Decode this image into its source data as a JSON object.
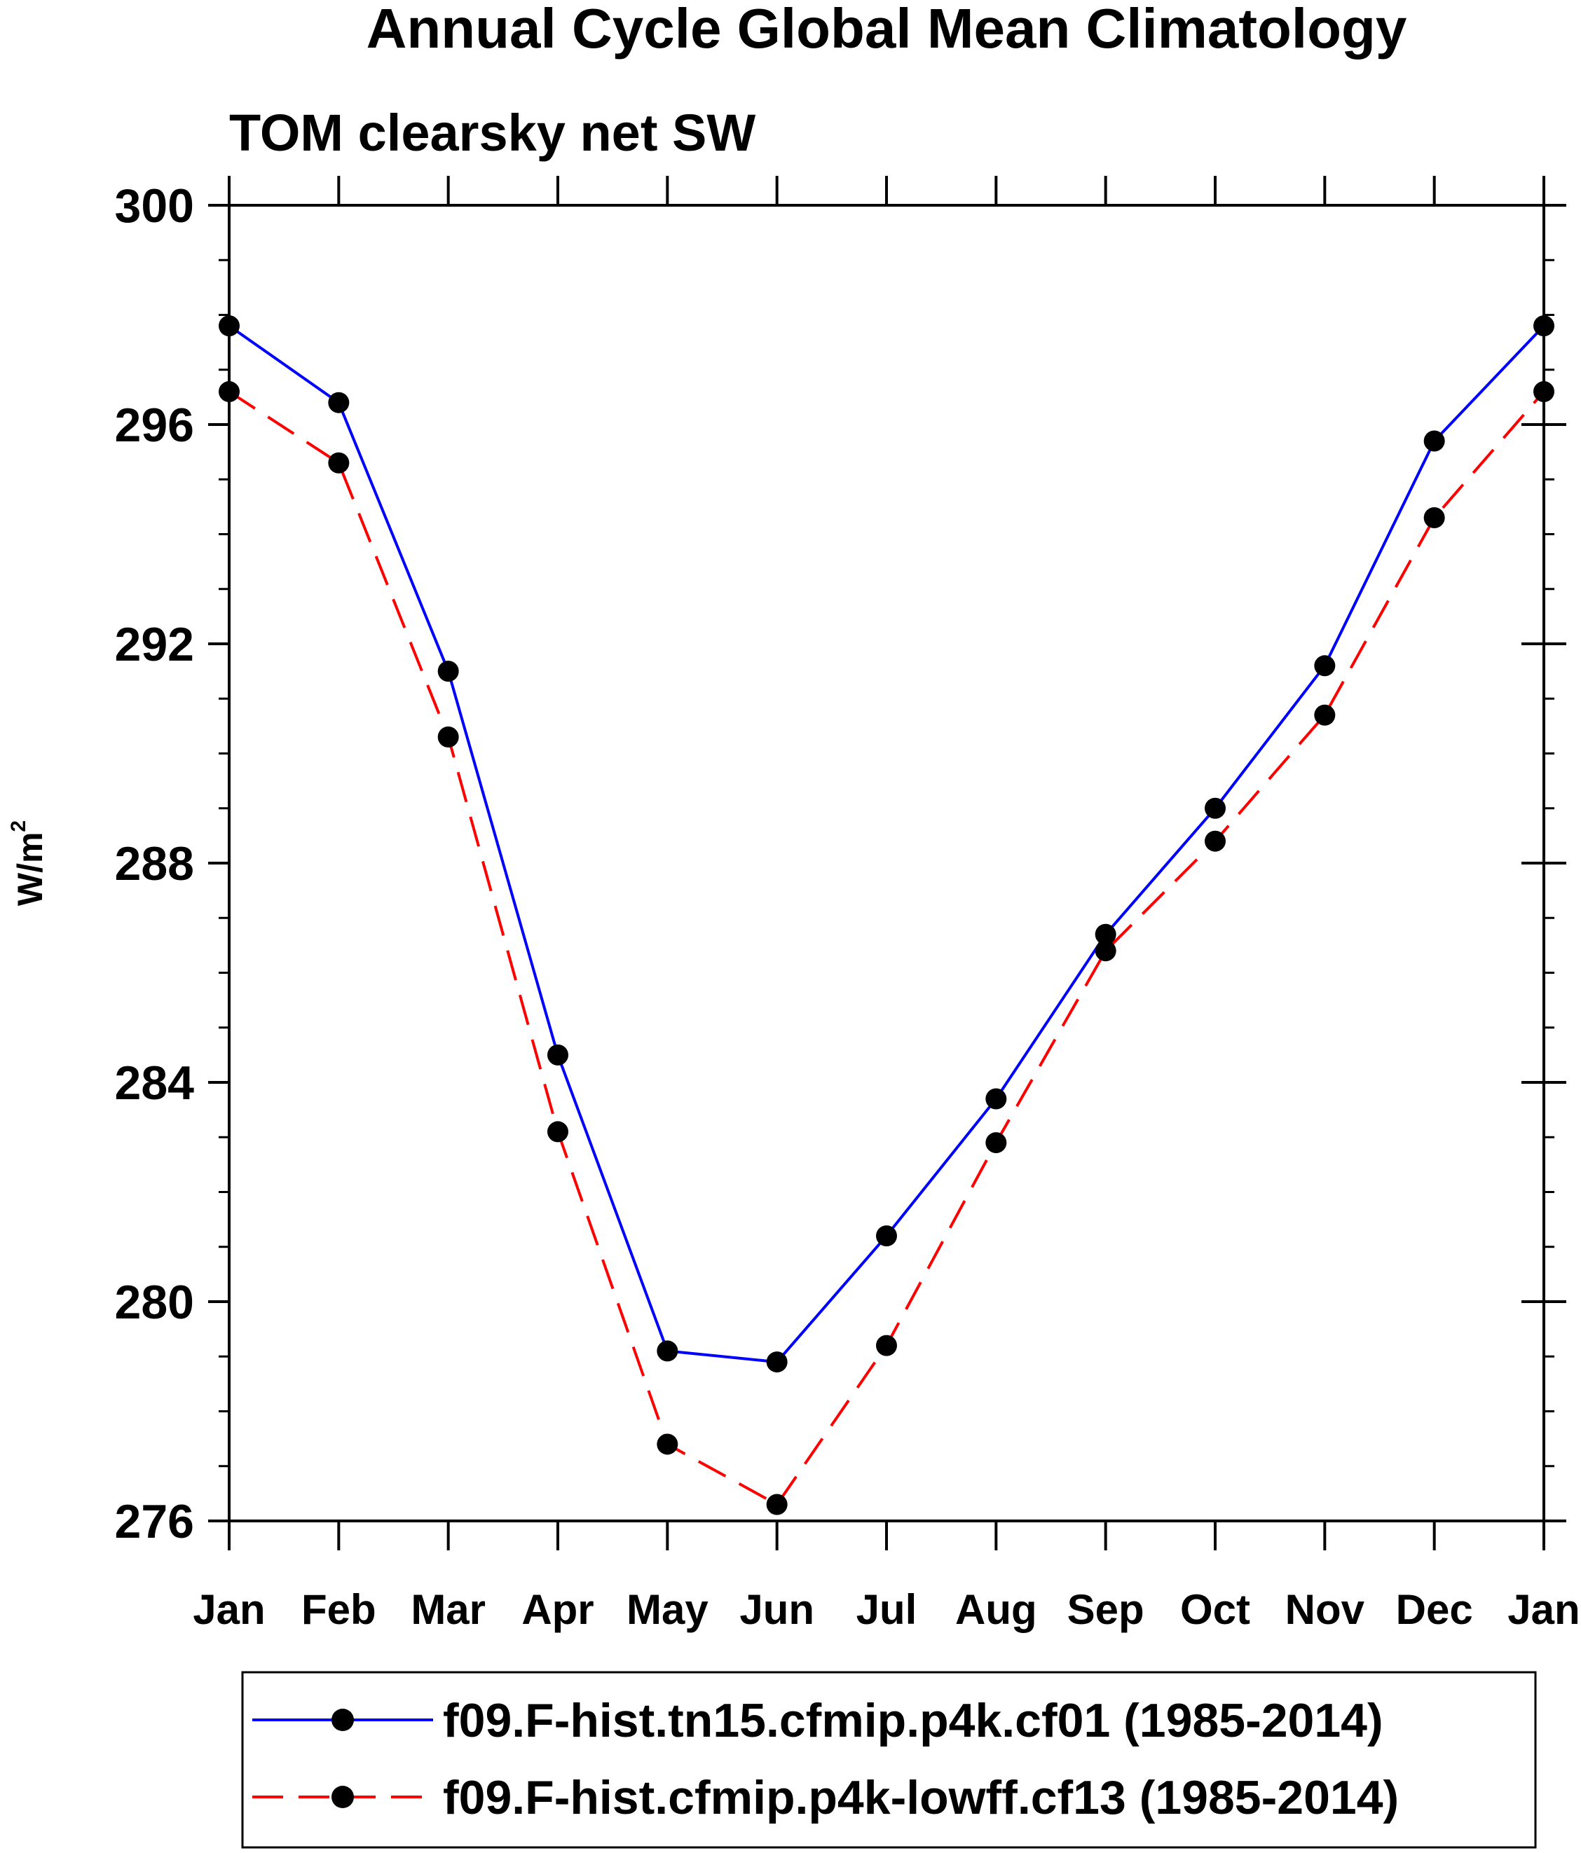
{
  "chart_data": {
    "type": "line",
    "title": "Annual Cycle Global Mean Climatology",
    "subtitle": "TOM clearsky net SW",
    "ylabel": "W/m",
    "ylabel_superscript": "2",
    "xlabel": "",
    "categories": [
      "Jan",
      "Feb",
      "Mar",
      "Apr",
      "May",
      "Jun",
      "Jul",
      "Aug",
      "Sep",
      "Oct",
      "Nov",
      "Dec",
      "Jan"
    ],
    "ylim": [
      276,
      300
    ],
    "yticks": [
      276,
      280,
      284,
      288,
      292,
      296,
      300
    ],
    "y_minor_step": 1,
    "series": [
      {
        "name": "f09.F-hist.tn15.cfmip.p4k.cf01 (1985-2014)",
        "color": "#0000ff",
        "dash": "solid",
        "marker": "filled-circle",
        "values": [
          297.8,
          296.4,
          291.5,
          284.5,
          279.1,
          278.9,
          281.2,
          283.7,
          286.7,
          289.0,
          291.6,
          295.7,
          297.8
        ]
      },
      {
        "name": "f09.F-hist.cfmip.p4k-lowff.cf13 (1985-2014)",
        "color": "#ff0000",
        "dash": "dashed",
        "marker": "filled-circle",
        "values": [
          296.6,
          295.3,
          290.3,
          283.1,
          277.4,
          276.3,
          279.2,
          282.9,
          286.4,
          288.4,
          290.7,
          294.3,
          296.6
        ]
      }
    ],
    "grid": false,
    "legend_position": "bottom"
  }
}
